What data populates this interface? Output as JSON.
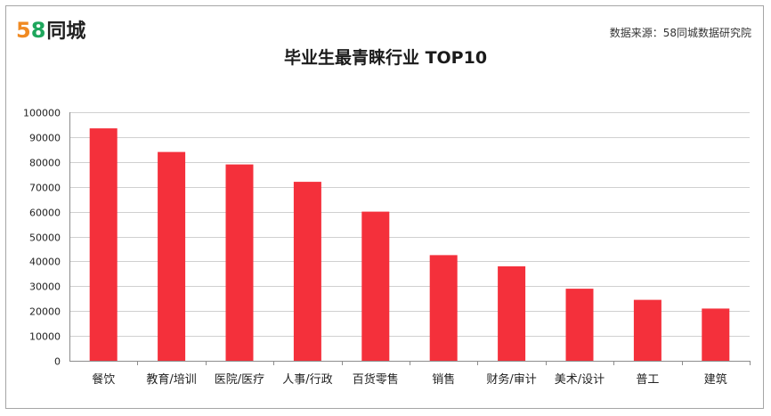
{
  "header": {
    "logo_digit_5": "5",
    "logo_digit_8": "8",
    "logo_text": "同城",
    "source": "数据来源：58同城数据研究院"
  },
  "colors": {
    "bar": "#f4303b",
    "logo_5": "#f08a22",
    "logo_8": "#1ea65c"
  },
  "chart_data": {
    "type": "bar",
    "title": "毕业生最青睐行业 TOP10",
    "categories": [
      "餐饮",
      "教育/培训",
      "医院/医疗",
      "人事/行政",
      "百货零售",
      "销售",
      "财务/审计",
      "美术/设计",
      "普工",
      "建筑"
    ],
    "values": [
      93500,
      84000,
      79000,
      72000,
      60000,
      42500,
      38000,
      29000,
      24500,
      21000
    ],
    "ylim": [
      0,
      100000
    ],
    "yticks": [
      0,
      10000,
      20000,
      30000,
      40000,
      50000,
      60000,
      70000,
      80000,
      90000,
      100000
    ],
    "xlabel": "",
    "ylabel": "",
    "grid": "horizontal",
    "legend": "none"
  }
}
